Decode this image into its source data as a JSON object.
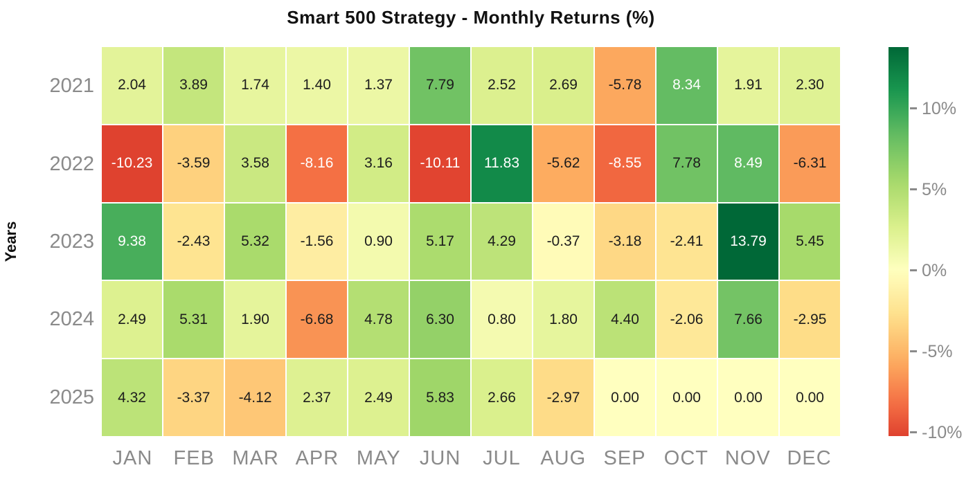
{
  "title": "Smart 500 Strategy - Monthly Returns (%)",
  "chart_data": {
    "type": "heatmap",
    "title": "Smart 500 Strategy - Monthly Returns (%)",
    "xlabel": "",
    "ylabel": "Years",
    "categories_x": [
      "JAN",
      "FEB",
      "MAR",
      "APR",
      "MAY",
      "JUN",
      "JUL",
      "AUG",
      "SEP",
      "OCT",
      "NOV",
      "DEC"
    ],
    "categories_y": [
      "2021",
      "2022",
      "2023",
      "2024",
      "2025"
    ],
    "values": [
      [
        2.04,
        3.89,
        1.74,
        1.4,
        1.37,
        7.79,
        2.52,
        2.69,
        -5.78,
        8.34,
        1.91,
        2.3
      ],
      [
        -10.23,
        -3.59,
        3.58,
        -8.16,
        3.16,
        -10.11,
        11.83,
        -5.62,
        -8.55,
        7.78,
        8.49,
        -6.31
      ],
      [
        9.38,
        -2.43,
        5.32,
        -1.56,
        0.9,
        5.17,
        4.29,
        -0.37,
        -3.18,
        -2.41,
        13.79,
        5.45
      ],
      [
        2.49,
        5.31,
        1.9,
        -6.68,
        4.78,
        6.3,
        0.8,
        1.8,
        4.4,
        -2.06,
        7.66,
        -2.95
      ],
      [
        4.32,
        -3.37,
        -4.12,
        2.37,
        2.49,
        5.83,
        2.66,
        -2.97,
        0.0,
        0.0,
        0.0,
        0.0
      ]
    ],
    "value_decimals": 2,
    "colormap": {
      "name": "RdYlGn",
      "stops": [
        [
          0.0,
          "#a50026"
        ],
        [
          0.1,
          "#d73027"
        ],
        [
          0.2,
          "#f46d43"
        ],
        [
          0.3,
          "#fdae61"
        ],
        [
          0.4,
          "#fee08b"
        ],
        [
          0.5,
          "#ffffbf"
        ],
        [
          0.6,
          "#d9ef8b"
        ],
        [
          0.7,
          "#a6d96a"
        ],
        [
          0.8,
          "#66bd63"
        ],
        [
          0.9,
          "#1a9850"
        ],
        [
          1.0,
          "#006837"
        ]
      ],
      "center": 0,
      "norm_min": -13.79,
      "norm_max": 13.79
    },
    "colorbar": {
      "display_min": -10.23,
      "display_max": 13.79,
      "ticks": [
        {
          "value": 10,
          "label": "10%"
        },
        {
          "value": 5,
          "label": "5%"
        },
        {
          "value": 0,
          "label": "0%"
        },
        {
          "value": -5,
          "label": "-5%"
        },
        {
          "value": -10,
          "label": "-10%"
        }
      ]
    },
    "style": {
      "white_text_abs_threshold": 8,
      "dark_text_color": "#1d1d1d",
      "white_text_color": "#ffffff",
      "axis_tick_color": "#8a8a8a",
      "title_color": "#111111",
      "grid_gap_color": "#ffffff",
      "legend_position": "right",
      "grid": "off"
    }
  }
}
